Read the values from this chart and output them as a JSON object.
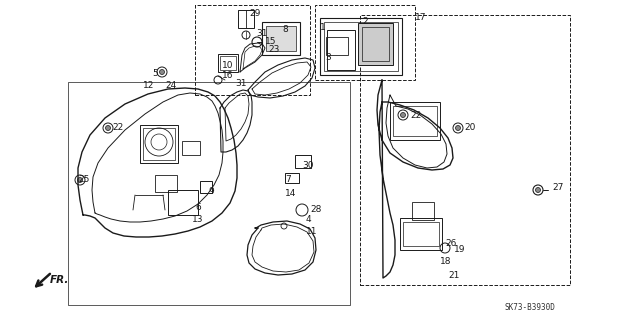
{
  "bg_color": "#ffffff",
  "fig_width": 6.4,
  "fig_height": 3.19,
  "dpi": 100,
  "watermark": "SK73-B3930D",
  "line_color": "#1a1a1a",
  "font_size": 6.5
}
